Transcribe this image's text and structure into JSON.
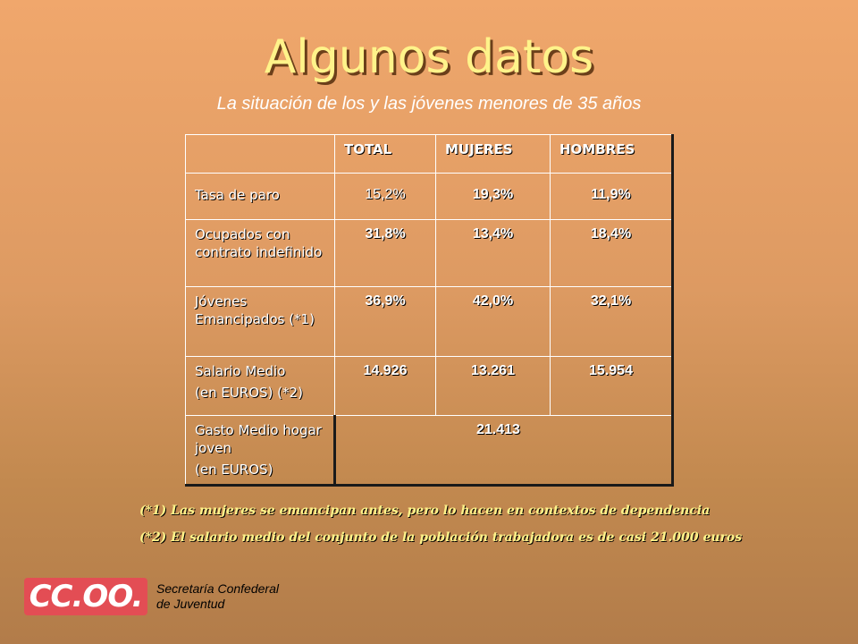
{
  "slide": {
    "title": "Algunos datos",
    "subtitle": "La situación de los y las jóvenes menores de 35 años"
  },
  "table": {
    "headers": [
      "",
      "TOTAL",
      "MUJERES",
      "HOMBRES"
    ],
    "rows": [
      {
        "label_lines": [
          "Tasa de paro"
        ],
        "values": [
          "15,2%",
          "19,3%",
          "11,9%"
        ]
      },
      {
        "label_lines": [
          "Ocupados con contrato indefinido"
        ],
        "values": [
          "31,8%",
          "13,4%",
          "18,4%"
        ]
      },
      {
        "label_lines": [
          "Jóvenes Emancipados (*1)"
        ],
        "values": [
          "36,9%",
          "42,0%",
          "32,1%"
        ]
      },
      {
        "label_lines": [
          "Salario Medio",
          "(en EUROS) (*2)"
        ],
        "values": [
          "14.926",
          "13.261",
          "15.954"
        ]
      },
      {
        "label_lines": [
          "Gasto Medio hogar joven",
          "(en EUROS)"
        ],
        "merged_value": "21.413"
      }
    ]
  },
  "notes": [
    "(*1) Las mujeres se emancipan antes, pero lo hacen en contextos de dependencia",
    "(*2) El salario medio del conjunto de la población trabajadora es de casi 21.000 euros"
  ],
  "footer": {
    "logo_text": "CC.OO.",
    "org_line1": "Secretaría Confederal",
    "org_line2": "de Juventud"
  },
  "colors": {
    "title": "#fff38a",
    "logo_bg": "#e34d54"
  }
}
